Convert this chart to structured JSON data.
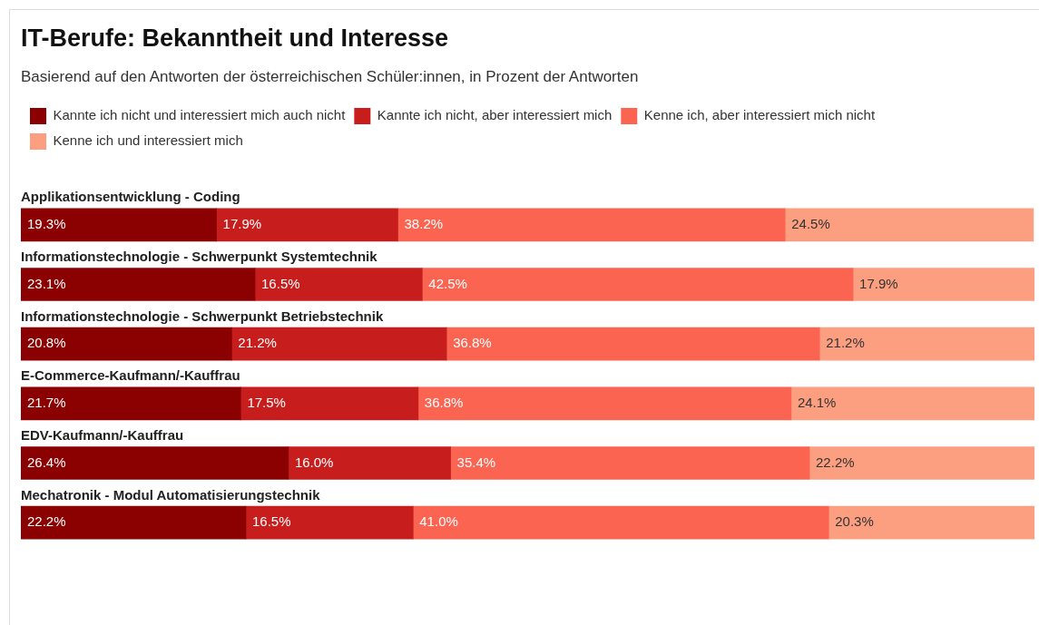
{
  "chart_data": {
    "type": "bar",
    "orientation": "horizontal",
    "stacked": true,
    "title": "IT-Berufe: Bekanntheit und Interesse",
    "subtitle": "Basierend auf den Antworten der österreichischen Schüler:innen, in Prozent der Antworten",
    "categories": [
      "Applikationsentwicklung - Coding",
      "Informationstechnologie - Schwerpunkt Systemtechnik",
      "Informationstechnologie - Schwerpunkt Betriebstechnik",
      "E-Commerce-Kaufmann/-Kauffrau",
      "EDV-Kaufmann/-Kauffrau",
      "Mechatronik - Modul Automatisierungstechnik"
    ],
    "xlim": [
      0,
      100
    ],
    "tick_labels": "y",
    "legend": "top left",
    "series": [
      {
        "name": "Kannte ich nicht und interessiert mich auch nicht",
        "color": "#8b0000",
        "values": [
          19.3,
          23.1,
          20.8,
          21.7,
          26.4,
          22.2
        ],
        "value_labels": [
          "19.3%",
          "23.1%",
          "20.8%",
          "21.7%",
          "26.4%",
          "22.2%"
        ]
      },
      {
        "name": "Kannte ich nicht, aber interessiert mich",
        "color": "#c71e1d",
        "values": [
          17.9,
          16.5,
          21.2,
          17.5,
          16.0,
          16.5
        ],
        "value_labels": [
          "17.9%",
          "16.5%",
          "21.2%",
          "17.5%",
          "16.0%",
          "16.5%"
        ]
      },
      {
        "name": "Kenne ich, aber interessiert mich nicht",
        "color": "#fa6450",
        "values": [
          38.2,
          42.5,
          36.8,
          36.8,
          35.4,
          41.0
        ],
        "value_labels": [
          "38.2%",
          "42.5%",
          "36.8%",
          "36.8%",
          "35.4%",
          "41.0%"
        ]
      },
      {
        "name": "Kenne ich und interessiert mich",
        "color": "#fc9f80",
        "values": [
          24.5,
          17.9,
          21.2,
          24.1,
          22.2,
          20.3
        ],
        "value_labels": [
          "24.5%",
          "17.9%",
          "21.2%",
          "24.1%",
          "22.2%",
          "20.3%"
        ]
      }
    ]
  }
}
